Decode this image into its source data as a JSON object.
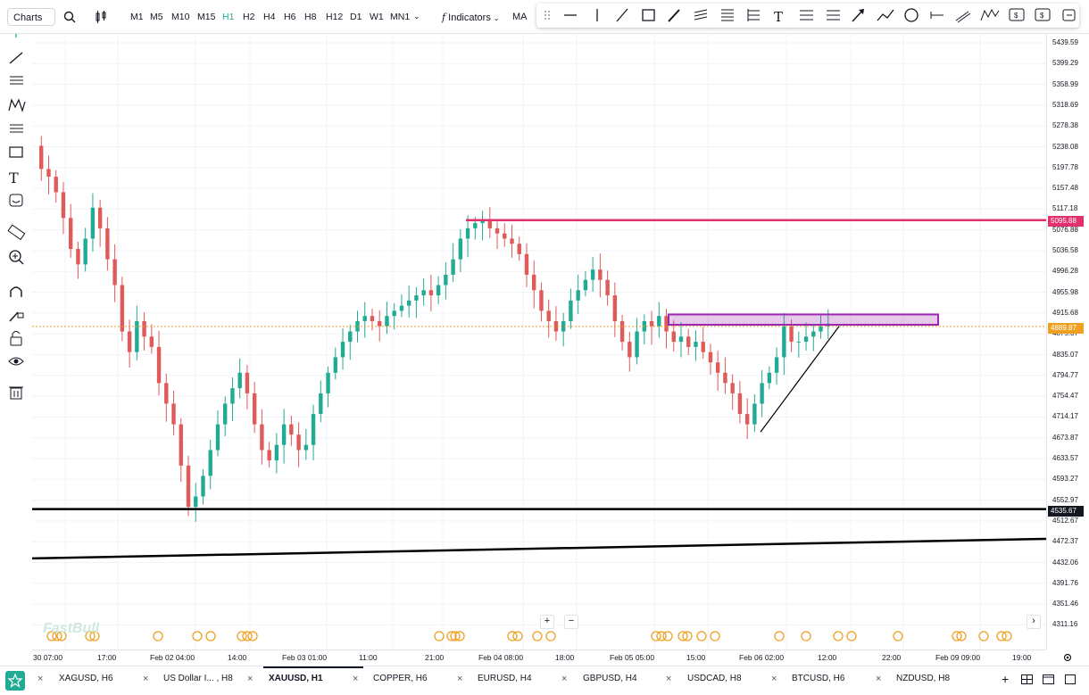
{
  "topbar": {
    "charts_label": "Charts",
    "timeframes": [
      "M1",
      "M5",
      "M10",
      "M15",
      "H1",
      "H2",
      "H4",
      "H6",
      "H8",
      "H12",
      "D1",
      "W1",
      "MN1"
    ],
    "active_timeframe": "H1",
    "indicators_label": "Indicators",
    "ma_label": "MA"
  },
  "chart": {
    "symbol": "XAUUSD",
    "watermark": "FastBull",
    "price_ticks": [
      "5439.59",
      "5399.29",
      "5358.99",
      "5318.69",
      "5278.38",
      "5238.08",
      "5197.78",
      "5157.48",
      "5117.18",
      "5076.88",
      "5036.58",
      "4996.28",
      "4955.98",
      "4915.68",
      "4875.37",
      "4835.07",
      "4794.77",
      "4754.47",
      "4714.17",
      "4673.87",
      "4633.57",
      "4593.27",
      "4552.97",
      "4512.67",
      "4472.37",
      "4432.06",
      "4391.76",
      "4351.46",
      "4311.16"
    ],
    "price_badges": {
      "resistance": "5095.88",
      "current": "4889.87",
      "support": "4535.67"
    },
    "time_ticks": [
      "30 07:00",
      "17:00",
      "Feb 02 04:00",
      "14:00",
      "Feb 03 01:00",
      "11:00",
      "21:00",
      "Feb 04 08:00",
      "18:00",
      "Feb 05 05:00",
      "15:00",
      "Feb 06 02:00",
      "12:00",
      "22:00",
      "Feb 09 09:00",
      "19:00"
    ],
    "colors": {
      "up": "#22ab94",
      "down": "#e05a5a",
      "resistance": "#e0306e",
      "zone": "#9c27b0",
      "current": "#f0a020"
    }
  },
  "tabs": [
    {
      "label": "XAGUSD, H6"
    },
    {
      "label": "US Dollar I... , H8"
    },
    {
      "label": "XAUUSD, H1"
    },
    {
      "label": "COPPER, H6"
    },
    {
      "label": "EURUSD, H4"
    },
    {
      "label": "GBPUSD, H4"
    },
    {
      "label": "USDCAD, H8"
    },
    {
      "label": "BTCUSD, H6"
    },
    {
      "label": "NZDUSD, H8"
    }
  ],
  "active_tab": "XAUUSD, H1"
}
